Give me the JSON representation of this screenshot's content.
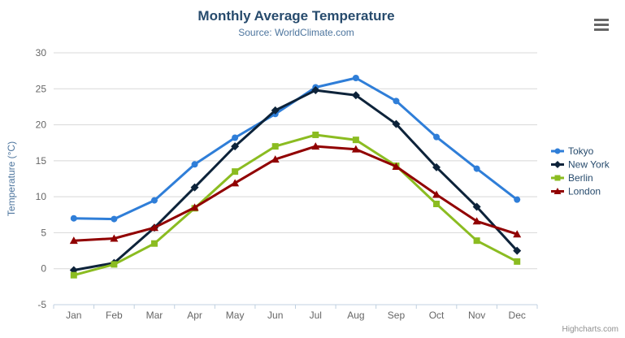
{
  "credits": "Highcharts.com",
  "icons": {
    "context_menu": "hamburger-icon"
  },
  "chart_data": {
    "type": "line",
    "title": "Monthly Average Temperature",
    "subtitle": "Source: WorldClimate.com",
    "xlabel": "",
    "ylabel": "Temperature (°C)",
    "ylim": [
      -5,
      30
    ],
    "ytick_step": 5,
    "grid": true,
    "legend_position": "right",
    "categories": [
      "Jan",
      "Feb",
      "Mar",
      "Apr",
      "May",
      "Jun",
      "Jul",
      "Aug",
      "Sep",
      "Oct",
      "Nov",
      "Dec"
    ],
    "series": [
      {
        "name": "Tokyo",
        "color": "#2f7ed8",
        "marker": "circle",
        "values": [
          7.0,
          6.9,
          9.5,
          14.5,
          18.2,
          21.5,
          25.2,
          26.5,
          23.3,
          18.3,
          13.9,
          9.6
        ]
      },
      {
        "name": "New York",
        "color": "#0d233a",
        "marker": "diamond",
        "values": [
          -0.2,
          0.8,
          5.7,
          11.3,
          17.0,
          22.0,
          24.8,
          24.1,
          20.1,
          14.1,
          8.6,
          2.5
        ]
      },
      {
        "name": "Berlin",
        "color": "#8bbc21",
        "marker": "square",
        "values": [
          -0.9,
          0.6,
          3.5,
          8.4,
          13.5,
          17.0,
          18.6,
          17.9,
          14.3,
          9.0,
          3.9,
          1.0
        ]
      },
      {
        "name": "London",
        "color": "#910000",
        "marker": "triangle",
        "values": [
          3.9,
          4.2,
          5.7,
          8.5,
          11.9,
          15.2,
          17.0,
          16.6,
          14.2,
          10.3,
          6.6,
          4.8
        ]
      }
    ],
    "style": {
      "grid_color": "#d8d8d8",
      "axis_color": "#c0d0e0",
      "label_color": "#666666",
      "legend_text_color": "#274b6d",
      "axis_title_color": "#4d759e"
    }
  }
}
